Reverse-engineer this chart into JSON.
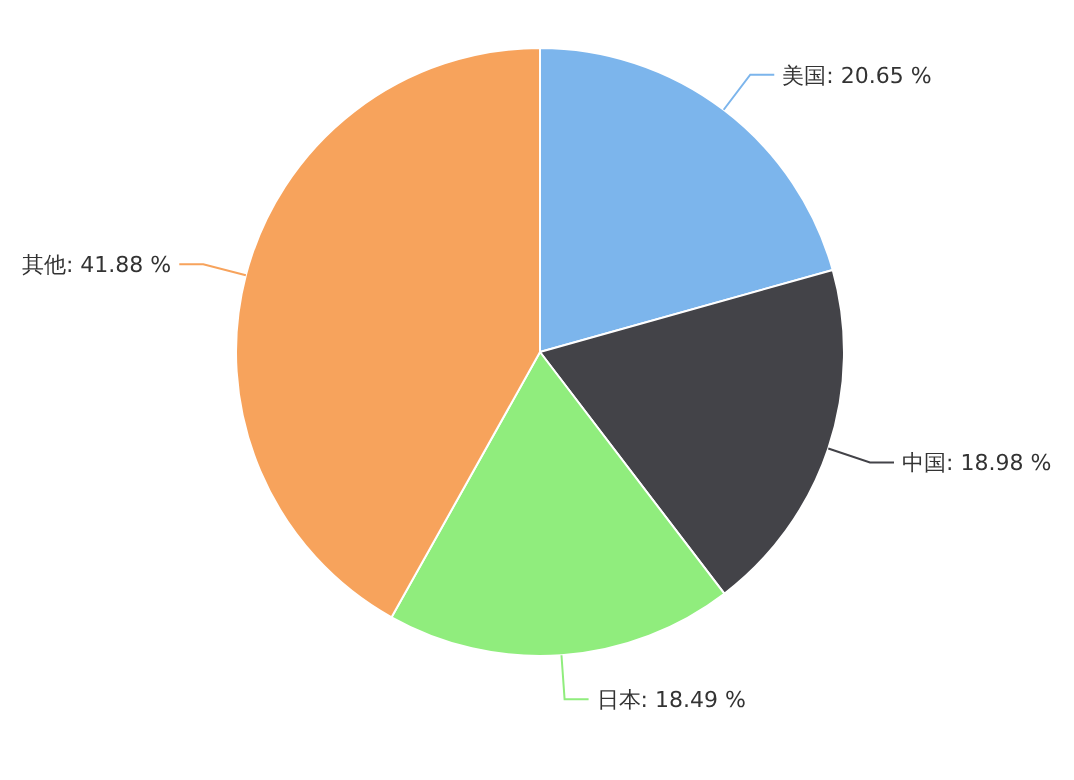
{
  "chart_data": {
    "type": "pie",
    "categories": [
      "美国",
      "中国",
      "日本",
      "其他"
    ],
    "values": [
      20.65,
      18.98,
      18.49,
      41.88
    ],
    "value_labels": [
      "20.65 %",
      "18.98 %",
      "18.49 %",
      "41.88 %"
    ],
    "colors": [
      "#7cb5ec",
      "#434348",
      "#90ed7d",
      "#f7a35c"
    ],
    "legend": false
  }
}
